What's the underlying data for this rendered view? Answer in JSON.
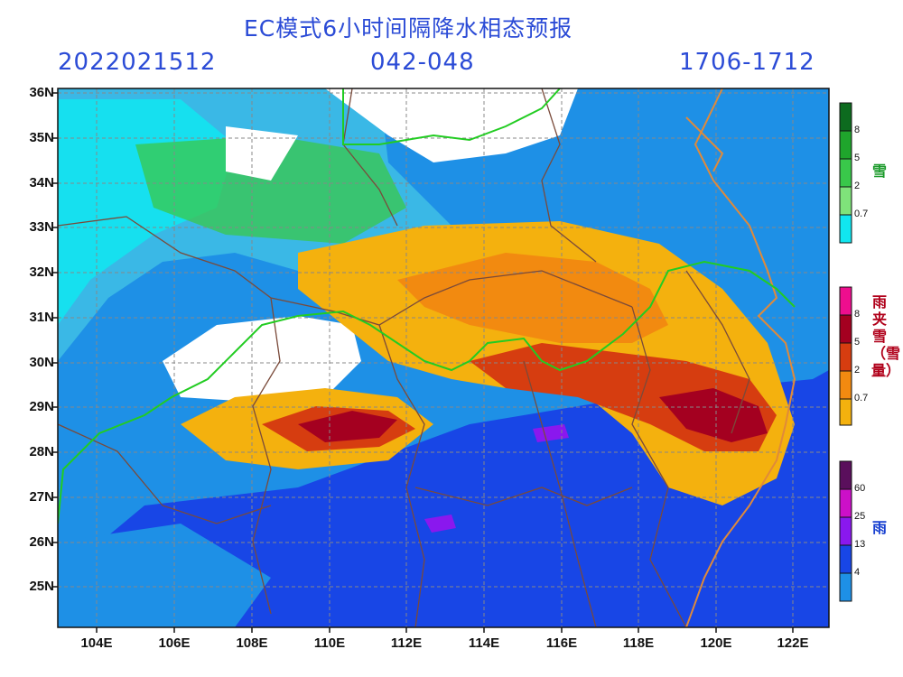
{
  "header": {
    "title": "EC模式6小时间隔降水相态预报",
    "init_time": "2022021512",
    "forecast_hours": "042-048",
    "valid_time": "1706-1712"
  },
  "map": {
    "lon_range": [
      103,
      123
    ],
    "lat_range": [
      24,
      36
    ],
    "lat_labels": [
      "36N",
      "35N",
      "34N",
      "33N",
      "32N",
      "31N",
      "30N",
      "29N",
      "28N",
      "27N",
      "26N",
      "25N"
    ],
    "lon_labels": [
      "104E",
      "106E",
      "108E",
      "110E",
      "112E",
      "114E",
      "116E",
      "118E",
      "120E",
      "122E"
    ],
    "grid": true
  },
  "legend": {
    "snow": {
      "title": "雪",
      "ticks": [
        "8",
        "5",
        "2",
        "0.7"
      ],
      "colors": [
        "#0d6b1f",
        "#1fa52c",
        "#39c84a",
        "#7fe37a",
        "#11e6f0"
      ],
      "title_color": "#1a9a2a"
    },
    "mixed": {
      "title": "雨夹雪（雪量）",
      "ticks": [
        "8",
        "5",
        "2",
        "0.7"
      ],
      "colors": [
        "#ee0e8e",
        "#a40020",
        "#d63d10",
        "#f28a10",
        "#f4b10e"
      ],
      "title_color": "#b0001a"
    },
    "rain": {
      "title": "雨",
      "ticks": [
        "60",
        "25",
        "13",
        "4"
      ],
      "colors": [
        "#5a0f5c",
        "#cc10c8",
        "#8a18ee",
        "#1846e6",
        "#1e90e6"
      ],
      "title_color": "#1840d0"
    }
  }
}
